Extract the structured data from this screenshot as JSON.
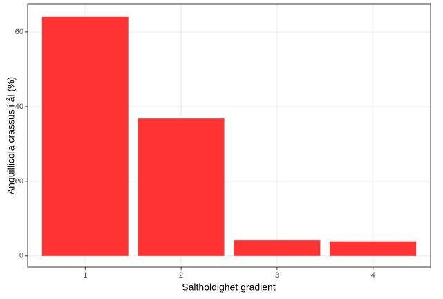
{
  "chart_data": {
    "type": "bar",
    "x_label": "Saltholdighet gradient",
    "y_label": "Anguillicola crassus i ål (%)",
    "categories": [
      "1",
      "2",
      "3",
      "4"
    ],
    "values": [
      64.1,
      36.8,
      4.2,
      3.9
    ],
    "color": "#ff3333",
    "ylim": [
      -3.0,
      67.4
    ],
    "yticks": [
      0,
      20,
      40,
      60
    ],
    "grid": true
  }
}
